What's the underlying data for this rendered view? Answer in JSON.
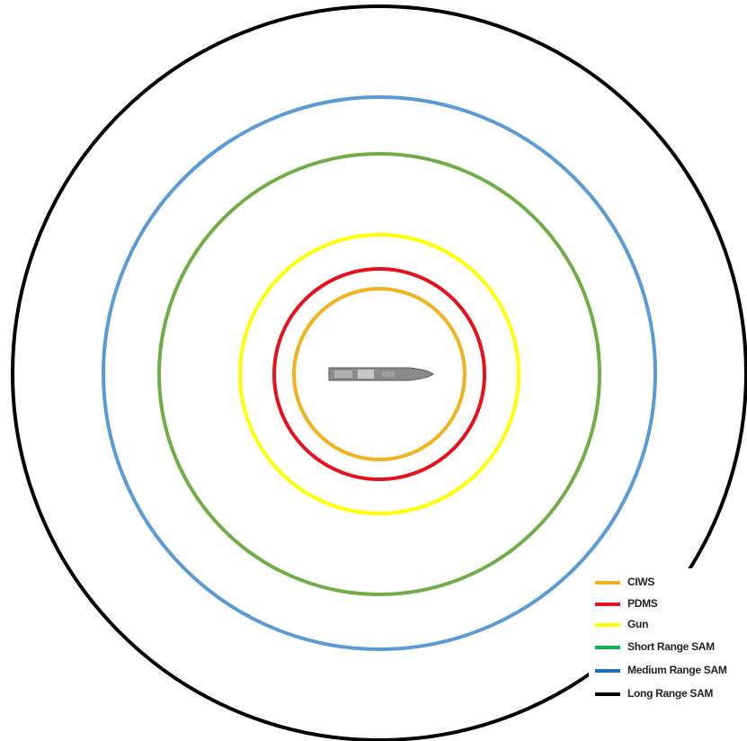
{
  "legend": {
    "items": [
      {
        "label": "CIWS"
      },
      {
        "label": "PDMS"
      },
      {
        "label": "Gun"
      },
      {
        "label": "Short Range SAM"
      },
      {
        "label": "Medium Range SAM"
      },
      {
        "label": "Long Range SAM"
      }
    ]
  }
}
